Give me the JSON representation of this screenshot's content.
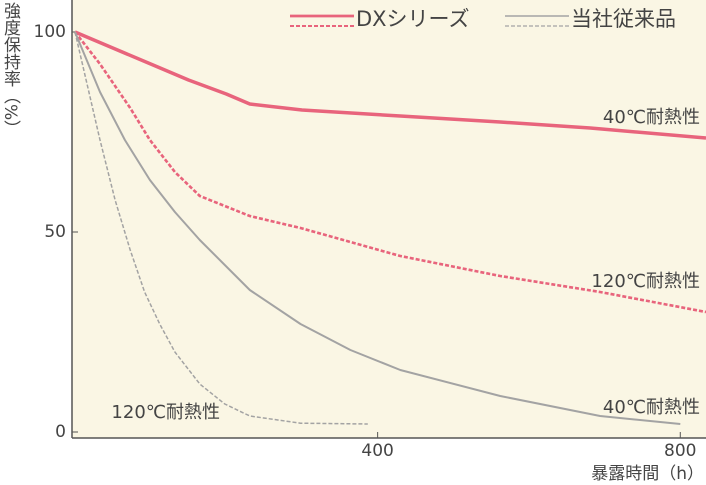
{
  "chart_data": {
    "type": "line",
    "y_label": "強度保持率（%）",
    "x_label": "暴露時間（h）",
    "xlim": [
      0,
      834
    ],
    "ylim": [
      -2,
      108
    ],
    "xticks": [
      400,
      800
    ],
    "yticks": [
      0,
      50,
      100
    ],
    "background": "#faf6e4",
    "groups": [
      {
        "name": "DXシリーズ",
        "color": "#e8647c",
        "width": 3.5,
        "series": [
          {
            "label": "40℃耐熱性",
            "dashed": false,
            "x": [
              0,
              50,
              100,
              150,
              200,
              231,
              300,
              430,
              562,
              681,
              834
            ],
            "values": [
              100,
              96,
              92,
              88,
              84.5,
              82,
              80.5,
              79,
              77.5,
              76,
              73.5
            ]
          },
          {
            "label": "120℃耐熱性",
            "dashed": true,
            "x": [
              0,
              33,
              73,
              99,
              132,
              165,
              231,
              298,
              430,
              562,
              694,
              834
            ],
            "values": [
              100,
              92,
              81,
              73,
              65,
              59,
              54,
              51,
              44,
              39,
              35,
              30
            ]
          }
        ]
      },
      {
        "name": "当社従来品",
        "color": "#a3a3a3",
        "width": 2,
        "series": [
          {
            "label": "40℃耐熱性",
            "dashed": false,
            "x": [
              0,
              33,
              66,
              99,
              132,
              165,
              231,
              298,
              364,
              430,
              562,
              694,
              800
            ],
            "values": [
              100,
              85,
              73,
              63,
              55,
              48,
              35.5,
              27,
              20.5,
              15.5,
              9,
              4,
              2
            ]
          },
          {
            "label": "120℃耐熱性",
            "dashed": true,
            "x": [
              0,
              33,
              53,
              73,
              92,
              112,
              132,
              165,
              198,
              231,
              298,
              387
            ],
            "values": [
              100,
              73,
              58,
              45.5,
              35,
              27,
              20,
              12,
              7,
              4,
              2.2,
              2
            ]
          }
        ]
      }
    ]
  }
}
